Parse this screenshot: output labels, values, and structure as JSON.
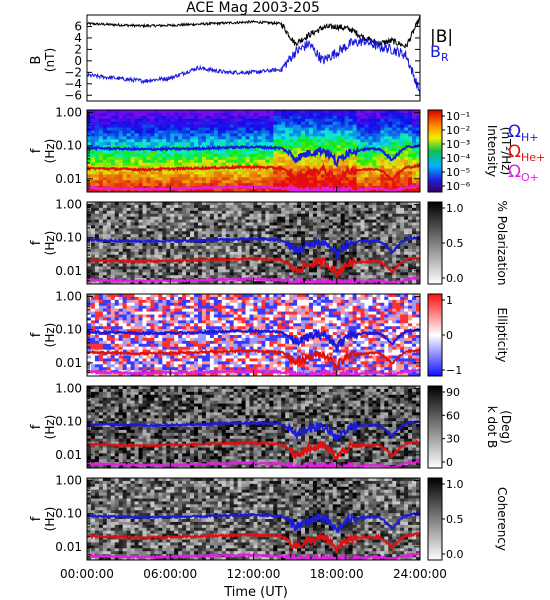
{
  "title": "ACE Mag 2003-205",
  "xlabel": "Time (UT)",
  "x_ticks": [
    "00:00:00",
    "06:00:00",
    "12:00:00",
    "18:00:00",
    "24:00:00"
  ],
  "freq_ticks": [
    "1.00",
    "0.10",
    "0.01"
  ],
  "freq_label": "f",
  "freq_unit": "(Hz)",
  "top_panel": {
    "ylabel": "B",
    "yunit": "(nT)",
    "yticks": [
      "6",
      "4",
      "2",
      "0",
      "−2",
      "−4",
      "−6"
    ],
    "legend_B": "|B|",
    "legend_BR": "B",
    "legend_BR_sub": "R",
    "colors": {
      "B": "#000000",
      "BR": "#1a1adc"
    }
  },
  "gyro_legend": [
    {
      "symbol": "Ω",
      "sub": "H+",
      "color": "#1a1adc"
    },
    {
      "symbol": "Ω",
      "sub": "He+",
      "color": "#e01010"
    },
    {
      "symbol": "Ω",
      "sub": "O+",
      "color": "#e020e0"
    }
  ],
  "panels": [
    {
      "key": "intensity",
      "cbar_label": "Intensity",
      "cbar_sub": "(nT²/Hz)",
      "cbar_ticks": [
        "10⁻¹",
        "10⁻²",
        "10⁻³",
        "10⁻⁴",
        "10⁻⁵",
        "10⁻⁶"
      ]
    },
    {
      "key": "polarization",
      "cbar_label": "% Polarization",
      "cbar_sub": "",
      "cbar_ticks": [
        "1.0",
        "0.5",
        "0.0"
      ]
    },
    {
      "key": "ellipticity",
      "cbar_label": "Ellipticity",
      "cbar_sub": "",
      "cbar_ticks": [
        "1",
        "0",
        "−1"
      ]
    },
    {
      "key": "kdotb",
      "cbar_label": "k dot B",
      "cbar_sub": "(Deg)",
      "cbar_ticks": [
        "90",
        "60",
        "30",
        "0"
      ]
    },
    {
      "key": "coherency",
      "cbar_label": "Coherency",
      "cbar_sub": "",
      "cbar_ticks": [
        "1.0",
        "0.5",
        "0.0"
      ]
    }
  ],
  "chart_data": {
    "type": "line",
    "title": "ACE Mag 2003-205",
    "x_unit": "hours UT",
    "xlim": [
      0,
      24
    ],
    "x": [
      0,
      2,
      4,
      6,
      8,
      10,
      12,
      14,
      15,
      16,
      17,
      18,
      19,
      20,
      21,
      22,
      23,
      24
    ],
    "series": [
      {
        "name": "|B|",
        "values": [
          6.5,
          6.3,
          6.1,
          6.2,
          6.4,
          6.6,
          6.8,
          6.5,
          3.0,
          4.5,
          5.8,
          6.0,
          5.5,
          4.0,
          3.0,
          3.5,
          2.5,
          7.5
        ]
      },
      {
        "name": "B_R",
        "values": [
          -2.5,
          -3.0,
          -3.5,
          -3.0,
          -1.2,
          -2.0,
          -2.0,
          -1.5,
          1.5,
          3.0,
          0.0,
          1.5,
          3.0,
          3.5,
          2.5,
          2.0,
          1.0,
          -5.5
        ]
      },
      {
        "name": "Ω_H+",
        "values": [
          0.085,
          0.082,
          0.078,
          0.08,
          0.082,
          0.088,
          0.092,
          0.085,
          0.04,
          0.06,
          0.075,
          0.03,
          0.07,
          0.078,
          0.08,
          0.035,
          0.09,
          0.1
        ]
      },
      {
        "name": "Ω_He+",
        "values": [
          0.021,
          0.02,
          0.019,
          0.02,
          0.021,
          0.022,
          0.023,
          0.021,
          0.01,
          0.015,
          0.019,
          0.008,
          0.018,
          0.019,
          0.02,
          0.009,
          0.022,
          0.025
        ]
      },
      {
        "name": "Ω_O+",
        "values": [
          0.0053,
          0.0051,
          0.0049,
          0.005,
          0.0052,
          0.0055,
          0.0057,
          0.0053,
          0.0045,
          0.0042,
          0.0047,
          0.004,
          0.0045,
          0.0048,
          0.005,
          0.0042,
          0.0055,
          0.0062
        ]
      }
    ],
    "ylim_B": [
      -7,
      8
    ],
    "ylim_f": [
      0.004,
      1.2
    ],
    "yscale_f": "log"
  }
}
